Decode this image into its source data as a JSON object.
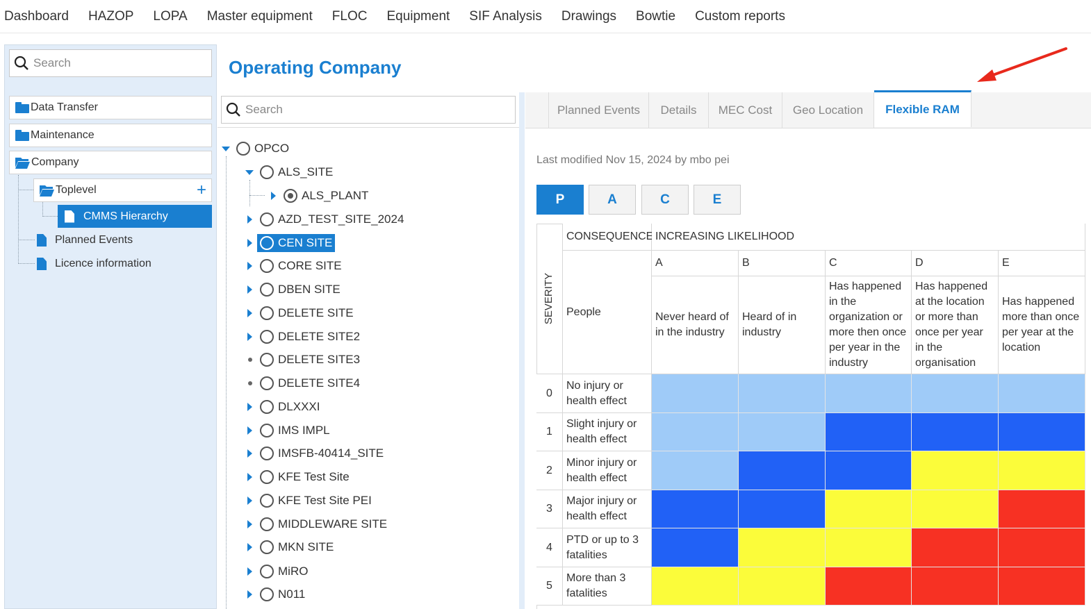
{
  "nav": [
    "Dashboard",
    "HAZOP",
    "LOPA",
    "Master equipment",
    "FLOC",
    "Equipment",
    "SIF Analysis",
    "Drawings",
    "Bowtie",
    "Custom reports"
  ],
  "left": {
    "search_placeholder": "Search",
    "items": [
      {
        "label": "Data Transfer",
        "icon": "folder-icon"
      },
      {
        "label": "Maintenance",
        "icon": "folder-icon"
      },
      {
        "label": "Company",
        "icon": "folder-open-icon"
      },
      {
        "label": "Toplevel",
        "icon": "folder-open-icon"
      },
      {
        "label": "CMMS Hierarchy",
        "icon": "document-icon"
      },
      {
        "label": "Planned Events",
        "icon": "document-icon"
      },
      {
        "label": "Licence information",
        "icon": "document-icon"
      }
    ],
    "add_symbol": "+"
  },
  "page_title": "Operating Company",
  "tree": {
    "search_placeholder": "Search",
    "nodes": [
      "OPCO",
      "ALS_SITE",
      "ALS_PLANT",
      "AZD_TEST_SITE_2024",
      "CEN SITE",
      "CORE SITE",
      "DBEN SITE",
      "DELETE SITE",
      "DELETE SITE2",
      "DELETE SITE3",
      "DELETE SITE4",
      "DLXXXI",
      "IMS IMPL",
      "IMSFB-40414_SITE",
      "KFE Test Site",
      "KFE Test Site PEI",
      "MIDDLEWARE SITE",
      "MKN SITE",
      "MiRO",
      "N011"
    ]
  },
  "tabs": [
    "Planned Events",
    "Details",
    "MEC Cost",
    "Geo Location",
    "Flexible RAM"
  ],
  "active_tab": "Flexible RAM",
  "last_modified": "Last modified Nov 15, 2024 by mbo pei",
  "ram_buttons": [
    "P",
    "A",
    "C",
    "E"
  ],
  "matrix": {
    "severity_label": "SEVERITY",
    "consequence_label": "CONSEQUENCE",
    "likelihood_label": "INCREASING LIKELIHOOD",
    "category_label": "People",
    "columns": [
      {
        "letter": "A",
        "desc": "Never heard of in the industry"
      },
      {
        "letter": "B",
        "desc": "Heard of in industry"
      },
      {
        "letter": "C",
        "desc": "Has happened in the organization or more then once per year in the industry"
      },
      {
        "letter": "D",
        "desc": "Has happened at the location or more than once per year in the organisation"
      },
      {
        "letter": "E",
        "desc": "Has happened more than once per year at the location"
      }
    ],
    "rows": [
      {
        "level": "0",
        "desc": "No injury or health effect",
        "cells": [
          "light",
          "light",
          "light",
          "light",
          "light"
        ]
      },
      {
        "level": "1",
        "desc": "Slight injury or health effect",
        "cells": [
          "light",
          "light",
          "blue",
          "blue",
          "blue"
        ]
      },
      {
        "level": "2",
        "desc": "Minor injury or health effect",
        "cells": [
          "light",
          "blue",
          "blue",
          "yellow",
          "yellow"
        ]
      },
      {
        "level": "3",
        "desc": "Major injury or health effect",
        "cells": [
          "blue",
          "blue",
          "yellow",
          "yellow",
          "red"
        ]
      },
      {
        "level": "4",
        "desc": "PTD or up to 3 fatalities",
        "cells": [
          "blue",
          "yellow",
          "yellow",
          "red",
          "red"
        ]
      },
      {
        "level": "5",
        "desc": "More than 3 fatalities",
        "cells": [
          "yellow",
          "yellow",
          "red",
          "red",
          "red"
        ]
      }
    ],
    "colors": {
      "light": "#9fcbf8",
      "blue": "#2161f6",
      "yellow": "#fbfc3a",
      "red": "#f73123"
    }
  }
}
